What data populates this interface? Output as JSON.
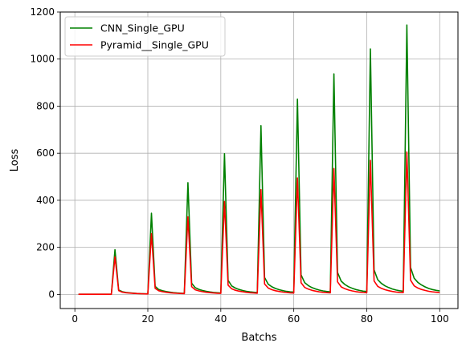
{
  "chart_data": {
    "type": "line",
    "xlabel": "Batchs",
    "ylabel": "Loss",
    "xlim": [
      -4,
      105
    ],
    "ylim": [
      -60,
      1200
    ],
    "xticks": [
      0,
      20,
      40,
      60,
      80,
      100
    ],
    "yticks": [
      0,
      200,
      400,
      600,
      800,
      1000,
      1200
    ],
    "grid": true,
    "legend_position": "top-left",
    "series": [
      {
        "name": "CNN_Single_GPU",
        "color": "#008000",
        "peaks": [
          {
            "x": 11,
            "y": 190
          },
          {
            "x": 21,
            "y": 345
          },
          {
            "x": 31,
            "y": 475
          },
          {
            "x": 41,
            "y": 598
          },
          {
            "x": 51,
            "y": 717
          },
          {
            "x": 61,
            "y": 830
          },
          {
            "x": 71,
            "y": 937
          },
          {
            "x": 81,
            "y": 1043
          },
          {
            "x": 91,
            "y": 1145
          }
        ]
      },
      {
        "name": "Pyramid__Single_GPU",
        "color": "#ff0000",
        "peaks": [
          {
            "x": 11,
            "y": 160
          },
          {
            "x": 21,
            "y": 258
          },
          {
            "x": 31,
            "y": 330
          },
          {
            "x": 41,
            "y": 395
          },
          {
            "x": 51,
            "y": 445
          },
          {
            "x": 61,
            "y": 495
          },
          {
            "x": 71,
            "y": 535
          },
          {
            "x": 81,
            "y": 570
          },
          {
            "x": 91,
            "y": 605
          }
        ]
      }
    ]
  }
}
